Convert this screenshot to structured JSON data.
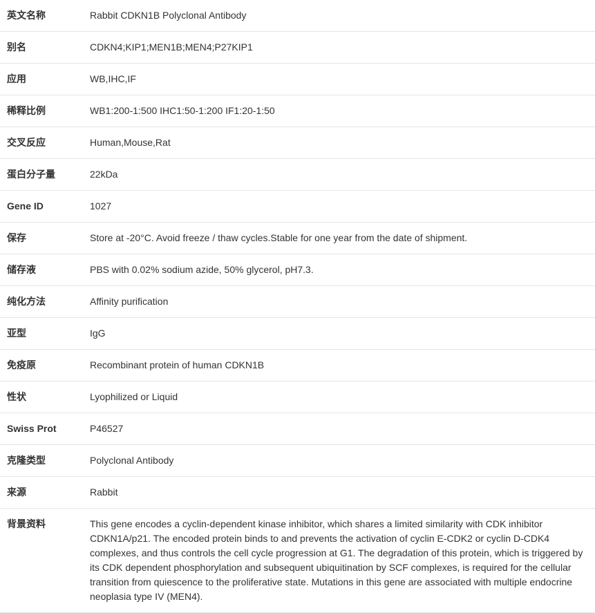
{
  "table": {
    "border_color": "#e5e5e5",
    "label_width": 120,
    "font_size": 14,
    "text_color": "#333333",
    "background_color": "#ffffff",
    "rows": [
      {
        "label": "英文名称",
        "value": "Rabbit CDKN1B Polyclonal Antibody"
      },
      {
        "label": "别名",
        "value": "CDKN4;KIP1;MEN1B;MEN4;P27KIP1"
      },
      {
        "label": "应用",
        "value": "WB,IHC,IF"
      },
      {
        "label": "稀释比例",
        "value": "WB1:200-1:500 IHC1:50-1:200 IF1:20-1:50"
      },
      {
        "label": "交叉反应",
        "value": "Human,Mouse,Rat"
      },
      {
        "label": "蛋白分子量",
        "value": "22kDa"
      },
      {
        "label": "Gene ID",
        "value": "1027"
      },
      {
        "label": "保存",
        "value": "Store at -20°C. Avoid freeze / thaw cycles.Stable for one year from the date of shipment."
      },
      {
        "label": "储存液",
        "value": "PBS with 0.02% sodium azide, 50% glycerol, pH7.3."
      },
      {
        "label": "纯化方法",
        "value": "Affinity purification"
      },
      {
        "label": "亚型",
        "value": "IgG"
      },
      {
        "label": "免疫原",
        "value": "Recombinant protein of human CDKN1B"
      },
      {
        "label": "性状",
        "value": "Lyophilized or Liquid"
      },
      {
        "label": "Swiss Prot",
        "value": "P46527"
      },
      {
        "label": "克隆类型",
        "value": "Polyclonal Antibody"
      },
      {
        "label": "来源",
        "value": "Rabbit"
      },
      {
        "label": "背景资料",
        "value": "This gene encodes a cyclin-dependent kinase inhibitor, which shares a limited similarity with CDK inhibitor CDKN1A/p21. The encoded protein binds to and prevents the activation of cyclin E-CDK2 or cyclin D-CDK4 complexes, and thus controls the cell cycle progression at G1. The degradation of this protein, which is triggered by its CDK dependent phosphorylation and subsequent ubiquitination by SCF complexes, is required for the cellular transition from quiescence to the proliferative state. Mutations in this gene are associated with multiple endocrine neoplasia type IV (MEN4)."
      }
    ]
  }
}
